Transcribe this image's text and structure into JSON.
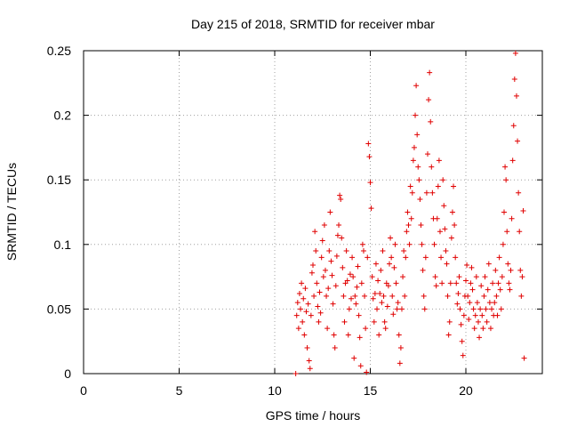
{
  "chart_data": {
    "type": "scatter",
    "title": "Day 215 of 2018, SRMTID for receiver mbar",
    "xlabel": "GPS time / hours",
    "ylabel": "SRMTID / TECUs",
    "xlim": [
      0,
      24
    ],
    "ylim": [
      0,
      0.25
    ],
    "xticks": [
      0,
      5,
      10,
      15,
      20
    ],
    "xtick_labels": [
      "0",
      "5",
      "10",
      "15",
      "20"
    ],
    "yticks": [
      0,
      0.05,
      0.1,
      0.15,
      0.2,
      0.25
    ],
    "ytick_labels": [
      "0",
      "0.05",
      "0.1",
      "0.15",
      "0.2",
      "0.25"
    ],
    "grid": true,
    "marker": "+",
    "color": "#e00000",
    "series": [
      {
        "name": "SRMTID",
        "points": [
          [
            11.1,
            0.0
          ],
          [
            11.15,
            0.045
          ],
          [
            11.2,
            0.055
          ],
          [
            11.25,
            0.035
          ],
          [
            11.3,
            0.062
          ],
          [
            11.35,
            0.05
          ],
          [
            11.4,
            0.07
          ],
          [
            11.45,
            0.04
          ],
          [
            11.5,
            0.058
          ],
          [
            11.55,
            0.03
          ],
          [
            11.6,
            0.066
          ],
          [
            11.65,
            0.048
          ],
          [
            11.7,
            0.02
          ],
          [
            11.75,
            0.054
          ],
          [
            11.8,
            0.01
          ],
          [
            11.85,
            0.004
          ],
          [
            11.9,
            0.045
          ],
          [
            11.95,
            0.078
          ],
          [
            12.0,
            0.084
          ],
          [
            12.05,
            0.06
          ],
          [
            12.1,
            0.11
          ],
          [
            12.15,
            0.095
          ],
          [
            12.2,
            0.07
          ],
          [
            12.25,
            0.052
          ],
          [
            12.3,
            0.04
          ],
          [
            12.35,
            0.063
          ],
          [
            12.4,
            0.047
          ],
          [
            12.45,
            0.09
          ],
          [
            12.5,
            0.103
          ],
          [
            12.55,
            0.075
          ],
          [
            12.6,
            0.115
          ],
          [
            12.65,
            0.08
          ],
          [
            12.7,
            0.06
          ],
          [
            12.75,
            0.035
          ],
          [
            12.8,
            0.066
          ],
          [
            12.85,
            0.095
          ],
          [
            12.9,
            0.125
          ],
          [
            12.95,
            0.087
          ],
          [
            13.0,
            0.076
          ],
          [
            13.05,
            0.054
          ],
          [
            13.1,
            0.03
          ],
          [
            13.15,
            0.02
          ],
          [
            13.2,
            0.068
          ],
          [
            13.25,
            0.091
          ],
          [
            13.3,
            0.107
          ],
          [
            13.35,
            0.115
          ],
          [
            13.4,
            0.138
          ],
          [
            13.45,
            0.135
          ],
          [
            13.5,
            0.105
          ],
          [
            13.55,
            0.082
          ],
          [
            13.6,
            0.06
          ],
          [
            13.65,
            0.04
          ],
          [
            13.7,
            0.07
          ],
          [
            13.75,
            0.095
          ],
          [
            13.8,
            0.072
          ],
          [
            13.85,
            0.03
          ],
          [
            13.9,
            0.05
          ],
          [
            13.95,
            0.077
          ],
          [
            14.0,
            0.058
          ],
          [
            14.05,
            0.09
          ],
          [
            14.1,
            0.075
          ],
          [
            14.15,
            0.012
          ],
          [
            14.2,
            0.06
          ],
          [
            14.25,
            0.054
          ],
          [
            14.3,
            0.067
          ],
          [
            14.35,
            0.083
          ],
          [
            14.4,
            0.045
          ],
          [
            14.45,
            0.028
          ],
          [
            14.5,
            0.006
          ],
          [
            14.55,
            0.07
          ],
          [
            14.6,
            0.1
          ],
          [
            14.65,
            0.095
          ],
          [
            14.7,
            0.06
          ],
          [
            14.75,
            0.035
          ],
          [
            14.8,
            0.001
          ],
          [
            14.85,
            0.09
          ],
          [
            14.9,
            0.178
          ],
          [
            14.95,
            0.168
          ],
          [
            15.0,
            0.148
          ],
          [
            15.05,
            0.128
          ],
          [
            15.1,
            0.075
          ],
          [
            15.15,
            0.058
          ],
          [
            15.2,
            0.04
          ],
          [
            15.25,
            0.062
          ],
          [
            15.3,
            0.085
          ],
          [
            15.35,
            0.05
          ],
          [
            15.4,
            0.072
          ],
          [
            15.45,
            0.03
          ],
          [
            15.5,
            0.062
          ],
          [
            15.55,
            0.08
          ],
          [
            15.6,
            0.055
          ],
          [
            15.65,
            0.095
          ],
          [
            15.7,
            0.06
          ],
          [
            15.75,
            0.04
          ],
          [
            15.8,
            0.035
          ],
          [
            15.85,
            0.07
          ],
          [
            15.9,
            0.052
          ],
          [
            15.95,
            0.068
          ],
          [
            16.0,
            0.085
          ],
          [
            16.05,
            0.105
          ],
          [
            16.1,
            0.09
          ],
          [
            16.15,
            0.06
          ],
          [
            16.2,
            0.046
          ],
          [
            16.25,
            0.082
          ],
          [
            16.3,
            0.1
          ],
          [
            16.35,
            0.07
          ],
          [
            16.4,
            0.05
          ],
          [
            16.45,
            0.055
          ],
          [
            16.5,
            0.03
          ],
          [
            16.55,
            0.008
          ],
          [
            16.6,
            0.02
          ],
          [
            16.65,
            0.05
          ],
          [
            16.7,
            0.075
          ],
          [
            16.75,
            0.095
          ],
          [
            16.8,
            0.06
          ],
          [
            16.85,
            0.09
          ],
          [
            16.9,
            0.11
          ],
          [
            16.95,
            0.125
          ],
          [
            17.0,
            0.115
          ],
          [
            17.05,
            0.1
          ],
          [
            17.1,
            0.145
          ],
          [
            17.15,
            0.12
          ],
          [
            17.2,
            0.14
          ],
          [
            17.25,
            0.165
          ],
          [
            17.3,
            0.175
          ],
          [
            17.35,
            0.2
          ],
          [
            17.4,
            0.223
          ],
          [
            17.45,
            0.185
          ],
          [
            17.5,
            0.16
          ],
          [
            17.55,
            0.15
          ],
          [
            17.6,
            0.135
          ],
          [
            17.65,
            0.115
          ],
          [
            17.7,
            0.1
          ],
          [
            17.75,
            0.08
          ],
          [
            17.8,
            0.06
          ],
          [
            17.85,
            0.05
          ],
          [
            17.9,
            0.09
          ],
          [
            17.95,
            0.14
          ],
          [
            18.0,
            0.17
          ],
          [
            18.05,
            0.212
          ],
          [
            18.1,
            0.233
          ],
          [
            18.15,
            0.195
          ],
          [
            18.2,
            0.16
          ],
          [
            18.25,
            0.14
          ],
          [
            18.3,
            0.12
          ],
          [
            18.35,
            0.1
          ],
          [
            18.4,
            0.075
          ],
          [
            18.45,
            0.068
          ],
          [
            18.5,
            0.12
          ],
          [
            18.55,
            0.145
          ],
          [
            18.6,
            0.165
          ],
          [
            18.65,
            0.11
          ],
          [
            18.7,
            0.09
          ],
          [
            18.75,
            0.07
          ],
          [
            18.8,
            0.15
          ],
          [
            18.85,
            0.13
          ],
          [
            18.9,
            0.112
          ],
          [
            18.95,
            0.095
          ],
          [
            19.0,
            0.085
          ],
          [
            19.05,
            0.06
          ],
          [
            19.1,
            0.03
          ],
          [
            19.15,
            0.04
          ],
          [
            19.2,
            0.07
          ],
          [
            19.25,
            0.105
          ],
          [
            19.3,
            0.125
          ],
          [
            19.35,
            0.145
          ],
          [
            19.4,
            0.115
          ],
          [
            19.45,
            0.09
          ],
          [
            19.5,
            0.07
          ],
          [
            19.55,
            0.054
          ],
          [
            19.6,
            0.062
          ],
          [
            19.65,
            0.075
          ],
          [
            19.7,
            0.05
          ],
          [
            19.75,
            0.038
          ],
          [
            19.8,
            0.025
          ],
          [
            19.85,
            0.014
          ],
          [
            19.9,
            0.045
          ],
          [
            19.95,
            0.06
          ],
          [
            20.0,
            0.072
          ],
          [
            20.05,
            0.084
          ],
          [
            20.1,
            0.06
          ],
          [
            20.15,
            0.042
          ],
          [
            20.2,
            0.055
          ],
          [
            20.25,
            0.07
          ],
          [
            20.3,
            0.082
          ],
          [
            20.35,
            0.065
          ],
          [
            20.4,
            0.05
          ],
          [
            20.45,
            0.035
          ],
          [
            20.5,
            0.045
          ],
          [
            20.55,
            0.075
          ],
          [
            20.6,
            0.055
          ],
          [
            20.65,
            0.04
          ],
          [
            20.7,
            0.028
          ],
          [
            20.75,
            0.05
          ],
          [
            20.8,
            0.068
          ],
          [
            20.85,
            0.045
          ],
          [
            20.9,
            0.035
          ],
          [
            20.95,
            0.06
          ],
          [
            21.0,
            0.075
          ],
          [
            21.05,
            0.05
          ],
          [
            21.1,
            0.04
          ],
          [
            21.15,
            0.065
          ],
          [
            21.2,
            0.085
          ],
          [
            21.25,
            0.055
          ],
          [
            21.3,
            0.035
          ],
          [
            21.35,
            0.05
          ],
          [
            21.4,
            0.07
          ],
          [
            21.45,
            0.045
          ],
          [
            21.5,
            0.055
          ],
          [
            21.55,
            0.08
          ],
          [
            21.6,
            0.06
          ],
          [
            21.65,
            0.045
          ],
          [
            21.7,
            0.07
          ],
          [
            21.75,
            0.09
          ],
          [
            21.8,
            0.065
          ],
          [
            21.85,
            0.05
          ],
          [
            21.9,
            0.075
          ],
          [
            21.95,
            0.1
          ],
          [
            22.0,
            0.125
          ],
          [
            22.05,
            0.16
          ],
          [
            22.1,
            0.15
          ],
          [
            22.15,
            0.11
          ],
          [
            22.2,
            0.085
          ],
          [
            22.25,
            0.07
          ],
          [
            22.3,
            0.065
          ],
          [
            22.35,
            0.08
          ],
          [
            22.4,
            0.12
          ],
          [
            22.45,
            0.165
          ],
          [
            22.5,
            0.192
          ],
          [
            22.55,
            0.228
          ],
          [
            22.6,
            0.248
          ],
          [
            22.65,
            0.215
          ],
          [
            22.7,
            0.18
          ],
          [
            22.75,
            0.14
          ],
          [
            22.8,
            0.11
          ],
          [
            22.85,
            0.08
          ],
          [
            22.9,
            0.06
          ],
          [
            22.95,
            0.075
          ],
          [
            23.0,
            0.126
          ],
          [
            23.05,
            0.012
          ]
        ]
      }
    ]
  }
}
